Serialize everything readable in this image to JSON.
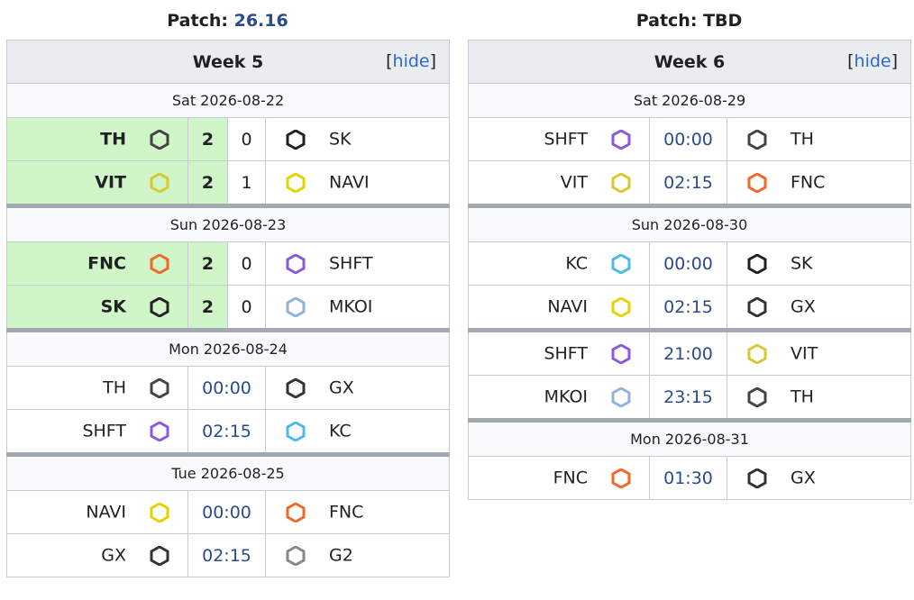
{
  "panels": [
    {
      "patch_label": "Patch:",
      "patch": "26.16",
      "patch_color": "#2a4b8d",
      "title": "Week 5",
      "toggle": [
        "[",
        "hide",
        "]"
      ],
      "days": [
        {
          "date": "Sat 2026-08-22",
          "matches": [
            {
              "team1": "TH",
              "score1": 2,
              "score2": 0,
              "team2": "SK"
            },
            {
              "team1": "VIT",
              "score1": 2,
              "score2": 1,
              "team2": "NAVI"
            }
          ]
        },
        {
          "date": "Sun 2026-08-23",
          "matches": [
            {
              "team1": "FNC",
              "score1": 2,
              "score2": 0,
              "team2": "SHFT"
            },
            {
              "team1": "SK",
              "score1": 2,
              "score2": 0,
              "team2": "MKOI"
            }
          ]
        },
        {
          "date": "Mon 2026-08-24",
          "matches": [
            {
              "team1": "TH",
              "time": "00:00",
              "team2": "GX"
            },
            {
              "team1": "SHFT",
              "time": "02:15",
              "team2": "KC"
            }
          ]
        },
        {
          "date": "Tue 2026-08-25",
          "matches": [
            {
              "team1": "NAVI",
              "time": "00:00",
              "team2": "FNC"
            },
            {
              "team1": "GX",
              "time": "02:15",
              "team2": "G2"
            }
          ]
        }
      ]
    },
    {
      "patch_label": "Patch:",
      "patch": "TBD",
      "patch_color": "#202122",
      "title": "Week 6",
      "toggle": [
        "[",
        "hide",
        "]"
      ],
      "days": [
        {
          "date": "Sat 2026-08-29",
          "matches": [
            {
              "team1": "SHFT",
              "time": "00:00",
              "team2": "TH"
            },
            {
              "team1": "VIT",
              "time": "02:15",
              "team2": "FNC"
            }
          ]
        },
        {
          "date": "Sun 2026-08-30",
          "matches": [
            {
              "team1": "KC",
              "time": "00:00",
              "team2": "SK"
            },
            {
              "team1": "NAVI",
              "time": "02:15",
              "team2": "GX"
            }
          ]
        },
        {
          "date": null,
          "matches": [
            {
              "team1": "SHFT",
              "time": "21:00",
              "team2": "VIT"
            },
            {
              "team1": "MKOI",
              "time": "23:15",
              "team2": "TH"
            }
          ]
        },
        {
          "date": "Mon 2026-08-31",
          "matches": [
            {
              "team1": "FNC",
              "time": "01:30",
              "team2": "GX"
            }
          ]
        }
      ]
    }
  ],
  "team_colors": {
    "TH": "#444444",
    "SK": "#222222",
    "VIT": "#d9c830",
    "NAVI": "#e6d200",
    "FNC": "#ee6a2a",
    "SHFT": "#8a5ad8",
    "MKOI": "#8fb4d8",
    "GX": "#333333",
    "KC": "#4fb8e8",
    "G2": "#888888"
  }
}
